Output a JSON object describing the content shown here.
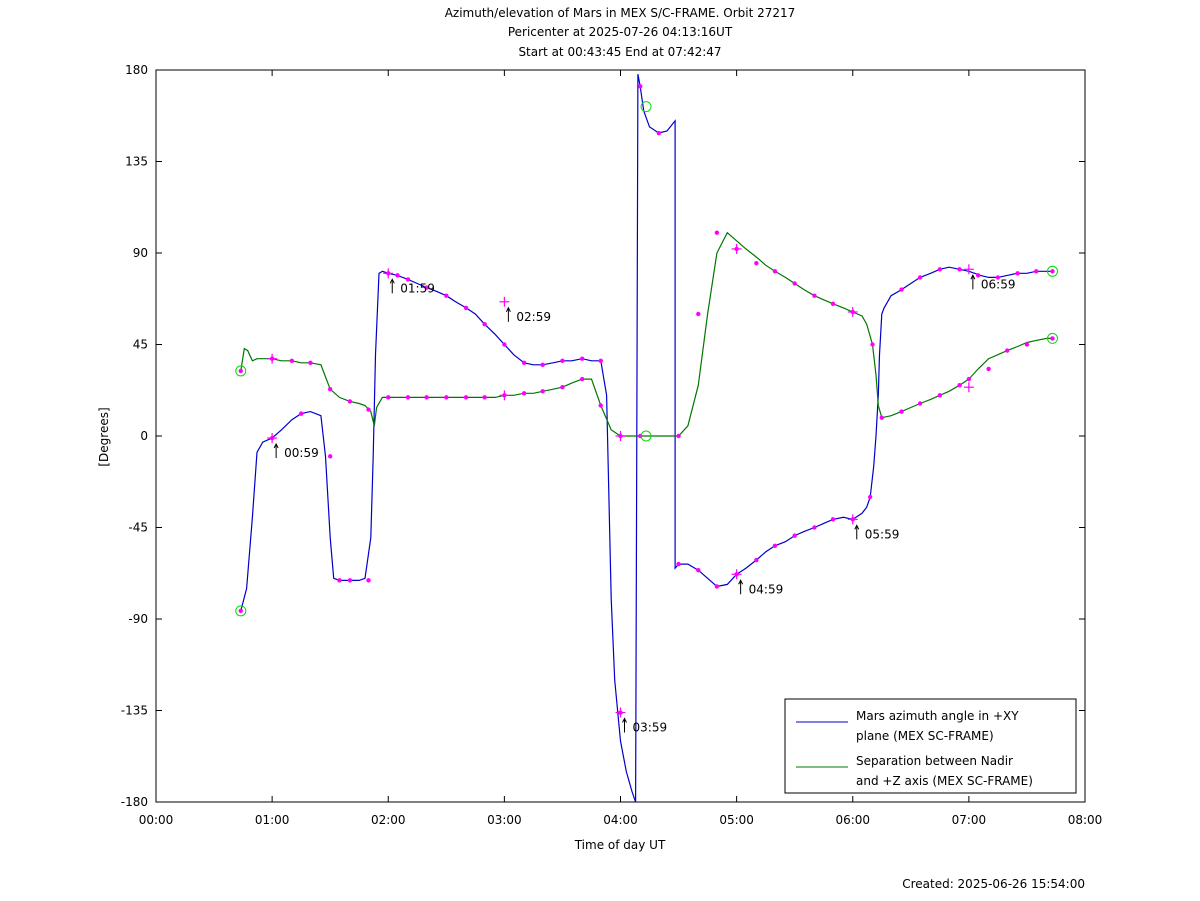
{
  "title_lines": [
    "Azimuth/elevation of Mars in MEX S/C-FRAME.  Orbit 27217",
    "Pericenter at 2025-07-26 04:13:16UT",
    "Start at 00:43:45 End at 07:42:47"
  ],
  "footer": "Created: 2025-06-26 15:54:00",
  "chart_data": {
    "type": "line",
    "title": "Azimuth/elevation of Mars in MEX S/C-FRAME.  Orbit 27217",
    "xlabel": "Time of day UT",
    "ylabel": "[Degrees]",
    "x_unit": "hours",
    "xlim": [
      0,
      8
    ],
    "ylim": [
      -180,
      180
    ],
    "x_ticks": [
      0,
      1,
      2,
      3,
      4,
      5,
      6,
      7,
      8
    ],
    "x_tick_labels": [
      "00:00",
      "01:00",
      "02:00",
      "03:00",
      "04:00",
      "05:00",
      "06:00",
      "07:00",
      "08:00"
    ],
    "y_ticks": [
      180,
      135,
      90,
      45,
      0,
      -45,
      -90,
      -135,
      -180
    ],
    "y_tick_labels": [
      "180",
      "135",
      "90",
      "45",
      "0",
      "-45",
      "-90",
      "-135",
      "-180"
    ],
    "grid": false,
    "legend_position": "bottom-right",
    "colors": {
      "azimuth": "#0000cc",
      "separation": "#007700",
      "marker": "#ff00ff",
      "endpoint": "#00dd00"
    },
    "series": [
      {
        "name": "Mars azimuth angle in +XY plane (MEX SC-FRAME)",
        "legend_lines": [
          "Mars azimuth angle in +XY",
          "plane (MEX SC-FRAME)"
        ],
        "x": [
          0.73,
          0.78,
          0.83,
          0.87,
          0.92,
          1.0,
          1.08,
          1.17,
          1.25,
          1.33,
          1.42,
          1.46,
          1.5,
          1.53,
          1.58,
          1.67,
          1.75,
          1.8,
          1.85,
          1.87,
          1.89,
          1.92,
          1.95,
          2.0,
          2.08,
          2.17,
          2.25,
          2.33,
          2.42,
          2.5,
          2.58,
          2.67,
          2.75,
          2.83,
          2.92,
          3.0,
          3.08,
          3.17,
          3.25,
          3.33,
          3.42,
          3.5,
          3.58,
          3.67,
          3.75,
          3.83,
          3.88,
          3.92,
          3.95,
          4.0,
          4.05,
          4.1,
          4.13,
          4.14,
          4.15,
          4.17,
          4.2,
          4.25,
          4.33,
          4.4,
          4.47,
          4.47,
          4.5,
          4.58,
          4.67,
          4.75,
          4.83,
          4.92,
          5.0,
          5.08,
          5.17,
          5.25,
          5.33,
          5.42,
          5.5,
          5.58,
          5.67,
          5.75,
          5.83,
          5.92,
          6.0,
          6.08,
          6.12,
          6.15,
          6.18,
          6.2,
          6.22,
          6.23,
          6.25,
          6.27,
          6.3,
          6.33,
          6.42,
          6.5,
          6.58,
          6.67,
          6.75,
          6.83,
          6.92,
          7.0,
          7.05,
          7.1,
          7.17,
          7.25,
          7.33,
          7.42,
          7.5,
          7.58,
          7.67,
          7.72
        ],
        "y": [
          -86,
          -75,
          -40,
          -8,
          -3,
          -1,
          3,
          8,
          11,
          12,
          10,
          -10,
          -50,
          -70,
          -71,
          -71,
          -71,
          -70,
          -50,
          -10,
          40,
          80,
          81,
          80,
          79,
          77,
          75,
          73,
          71,
          69,
          66,
          63,
          60,
          55,
          50,
          45,
          40,
          36,
          35,
          35,
          36,
          37,
          37,
          38,
          37,
          37,
          20,
          -80,
          -120,
          -150,
          -165,
          -175,
          -180,
          0,
          178,
          172,
          160,
          152,
          149,
          150,
          155,
          -65,
          -63,
          -63,
          -66,
          -70,
          -74,
          -73,
          -68,
          -65,
          -61,
          -57,
          -54,
          -52,
          -49,
          -47,
          -45,
          -43,
          -41,
          -40,
          -41,
          -38,
          -35,
          -30,
          -15,
          0,
          20,
          40,
          60,
          63,
          66,
          69,
          72,
          75,
          78,
          80,
          82,
          83,
          82,
          81,
          80,
          79,
          78,
          78,
          79,
          80,
          80,
          81,
          81,
          81
        ]
      },
      {
        "name": "Separation between Nadir and +Z axis (MEX SC-FRAME)",
        "legend_lines": [
          "Separation between Nadir",
          "and +Z axis (MEX SC-FRAME)"
        ],
        "x": [
          0.73,
          0.76,
          0.79,
          0.83,
          0.87,
          0.92,
          1.0,
          1.08,
          1.17,
          1.25,
          1.33,
          1.42,
          1.5,
          1.58,
          1.67,
          1.75,
          1.8,
          1.85,
          1.88,
          1.9,
          1.95,
          2.0,
          2.08,
          2.17,
          2.25,
          2.33,
          2.42,
          2.5,
          2.58,
          2.67,
          2.75,
          2.83,
          2.92,
          3.0,
          3.08,
          3.17,
          3.25,
          3.33,
          3.42,
          3.5,
          3.58,
          3.67,
          3.75,
          3.83,
          3.92,
          4.0,
          4.08,
          4.17,
          4.25,
          4.33,
          4.42,
          4.5,
          4.58,
          4.67,
          4.75,
          4.83,
          4.92,
          5.0,
          5.08,
          5.17,
          5.25,
          5.33,
          5.42,
          5.5,
          5.58,
          5.67,
          5.75,
          5.83,
          5.92,
          6.0,
          6.08,
          6.12,
          6.17,
          6.2,
          6.22,
          6.25,
          6.33,
          6.42,
          6.5,
          6.58,
          6.67,
          6.75,
          6.83,
          6.92,
          7.0,
          7.08,
          7.17,
          7.25,
          7.33,
          7.42,
          7.5,
          7.58,
          7.67,
          7.72
        ],
        "y": [
          32,
          43,
          42,
          37,
          38,
          38,
          38,
          37,
          37,
          36,
          36,
          35,
          23,
          19,
          17,
          16,
          15,
          12,
          5,
          14,
          19,
          19,
          19,
          19,
          19,
          19,
          19,
          19,
          19,
          19,
          19,
          19,
          19,
          20,
          20,
          21,
          21,
          22,
          23,
          24,
          26,
          28,
          28,
          15,
          3,
          0,
          0,
          0,
          0,
          0,
          0,
          0,
          5,
          25,
          60,
          90,
          100,
          96,
          92,
          88,
          84,
          81,
          78,
          75,
          72,
          69,
          67,
          65,
          63,
          61,
          59,
          55,
          45,
          30,
          15,
          9,
          10,
          12,
          14,
          16,
          18,
          20,
          22,
          25,
          28,
          33,
          38,
          40,
          42,
          44,
          46,
          47,
          48,
          48
        ]
      }
    ],
    "markers_az": [
      [
        0.73,
        -86
      ],
      [
        1.0,
        -1
      ],
      [
        1.25,
        11
      ],
      [
        1.5,
        -10
      ],
      [
        1.58,
        -71
      ],
      [
        1.67,
        -71
      ],
      [
        1.83,
        -71
      ],
      [
        2.0,
        80
      ],
      [
        2.08,
        79
      ],
      [
        2.17,
        77
      ],
      [
        2.33,
        73
      ],
      [
        2.5,
        69
      ],
      [
        2.67,
        63
      ],
      [
        2.83,
        55
      ],
      [
        3.0,
        45
      ],
      [
        3.17,
        36
      ],
      [
        3.33,
        35
      ],
      [
        3.5,
        37
      ],
      [
        3.67,
        38
      ],
      [
        3.83,
        37
      ],
      [
        4.0,
        -136
      ],
      [
        4.17,
        172
      ],
      [
        4.33,
        149
      ],
      [
        4.5,
        -63
      ],
      [
        4.67,
        -66
      ],
      [
        4.83,
        -74
      ],
      [
        5.0,
        -68
      ],
      [
        5.17,
        -61
      ],
      [
        5.33,
        -54
      ],
      [
        5.5,
        -49
      ],
      [
        5.67,
        -45
      ],
      [
        5.83,
        -41
      ],
      [
        6.0,
        -41
      ],
      [
        6.15,
        -30
      ],
      [
        6.42,
        72
      ],
      [
        6.58,
        78
      ],
      [
        6.75,
        82
      ],
      [
        6.92,
        82
      ],
      [
        7.08,
        79
      ],
      [
        7.25,
        78
      ],
      [
        7.42,
        80
      ],
      [
        7.58,
        81
      ],
      [
        7.72,
        81
      ]
    ],
    "markers_sep": [
      [
        0.73,
        32
      ],
      [
        1.0,
        38
      ],
      [
        1.17,
        37
      ],
      [
        1.33,
        36
      ],
      [
        1.5,
        23
      ],
      [
        1.67,
        17
      ],
      [
        1.83,
        13
      ],
      [
        2.0,
        19
      ],
      [
        2.17,
        19
      ],
      [
        2.33,
        19
      ],
      [
        2.5,
        19
      ],
      [
        2.67,
        19
      ],
      [
        2.83,
        19
      ],
      [
        3.0,
        20
      ],
      [
        3.17,
        21
      ],
      [
        3.33,
        22
      ],
      [
        3.5,
        24
      ],
      [
        3.67,
        28
      ],
      [
        3.83,
        15
      ],
      [
        4.0,
        0
      ],
      [
        4.17,
        0
      ],
      [
        4.5,
        0
      ],
      [
        4.67,
        60
      ],
      [
        4.83,
        100
      ],
      [
        5.0,
        92
      ],
      [
        5.17,
        85
      ],
      [
        5.33,
        81
      ],
      [
        5.5,
        75
      ],
      [
        5.67,
        69
      ],
      [
        5.83,
        65
      ],
      [
        6.0,
        61
      ],
      [
        6.17,
        45
      ],
      [
        6.25,
        9
      ],
      [
        6.42,
        12
      ],
      [
        6.58,
        16
      ],
      [
        6.75,
        20
      ],
      [
        6.92,
        25
      ],
      [
        7.0,
        28
      ],
      [
        7.17,
        33
      ],
      [
        7.33,
        42
      ],
      [
        7.5,
        45
      ],
      [
        7.72,
        48
      ]
    ],
    "major_markers": [
      [
        1.0,
        -1
      ],
      [
        1.0,
        38
      ],
      [
        2.0,
        80
      ],
      [
        3.0,
        20
      ],
      [
        3.0,
        66
      ],
      [
        4.0,
        -136
      ],
      [
        4.0,
        0
      ],
      [
        5.0,
        -68
      ],
      [
        5.0,
        92
      ],
      [
        6.0,
        -41
      ],
      [
        6.0,
        61
      ],
      [
        7.0,
        82
      ],
      [
        7.0,
        24
      ]
    ],
    "endpoints": [
      [
        0.73,
        -86
      ],
      [
        0.73,
        32
      ],
      [
        4.22,
        162
      ],
      [
        4.22,
        0
      ],
      [
        7.72,
        81
      ],
      [
        7.72,
        48
      ]
    ],
    "annotations": [
      {
        "label": "00:59",
        "x": 1.0,
        "y": -1
      },
      {
        "label": "01:59",
        "x": 2.0,
        "y": 80
      },
      {
        "label": "02:59",
        "x": 3.0,
        "y": 66
      },
      {
        "label": "03:59",
        "x": 4.0,
        "y": -136
      },
      {
        "label": "04:59",
        "x": 5.0,
        "y": -68
      },
      {
        "label": "05:59",
        "x": 6.0,
        "y": -41
      },
      {
        "label": "06:59",
        "x": 7.0,
        "y": 82
      }
    ]
  }
}
